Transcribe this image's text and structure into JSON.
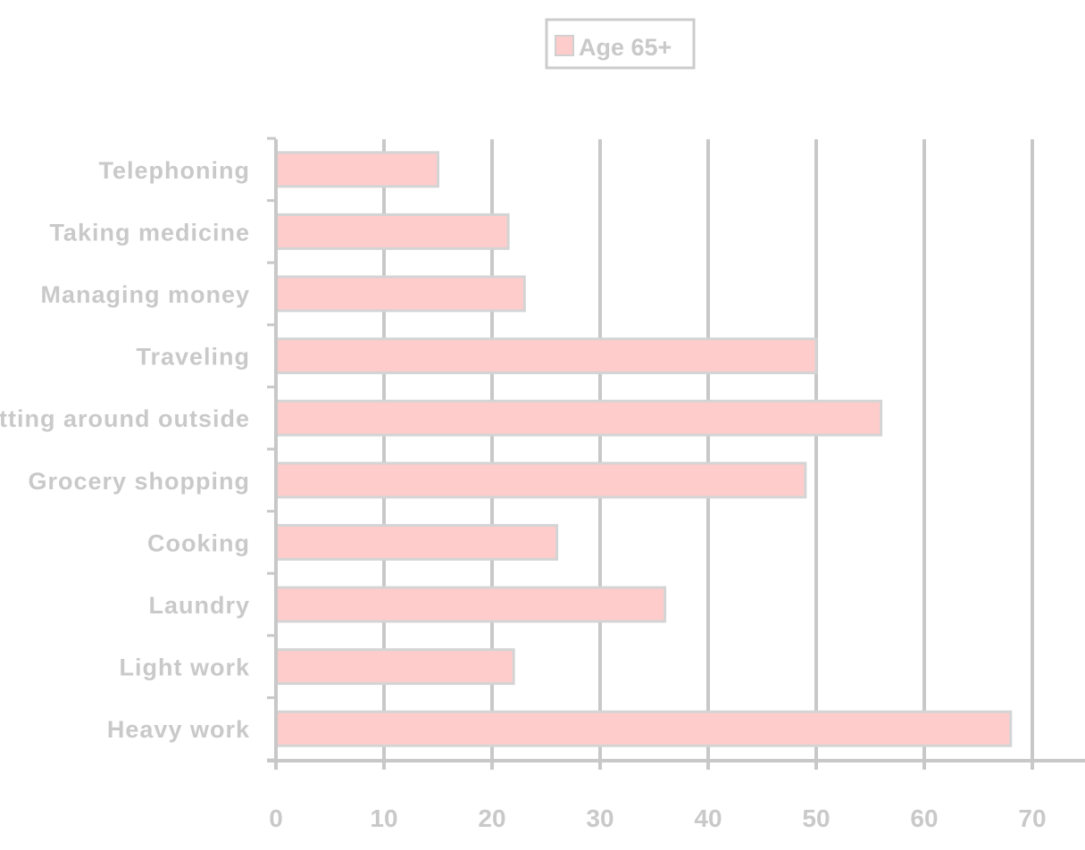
{
  "chart_data": {
    "type": "bar",
    "orientation": "horizontal",
    "categories": [
      "Telephoning",
      "Taking medicine",
      "Managing money",
      "Traveling",
      "Getting around outside",
      "Grocery shopping",
      "Cooking",
      "Laundry",
      "Light work",
      "Heavy work"
    ],
    "series": [
      {
        "name": "Age 65+",
        "values": [
          15,
          21.5,
          23,
          50,
          56,
          49,
          26,
          36,
          22,
          68
        ]
      }
    ],
    "xlim": [
      0,
      70
    ],
    "xticks": [
      "0",
      "10",
      "20",
      "30",
      "40",
      "50",
      "60",
      "70"
    ],
    "grid": "vertical",
    "legend_position": "top-center",
    "colors": {
      "bar_fill": "#ffcccc",
      "bar_stroke": "#d4d4d4",
      "text": "#c9c9c9",
      "grid": "#c8c8c8",
      "axis": "#c8c8c8"
    }
  }
}
